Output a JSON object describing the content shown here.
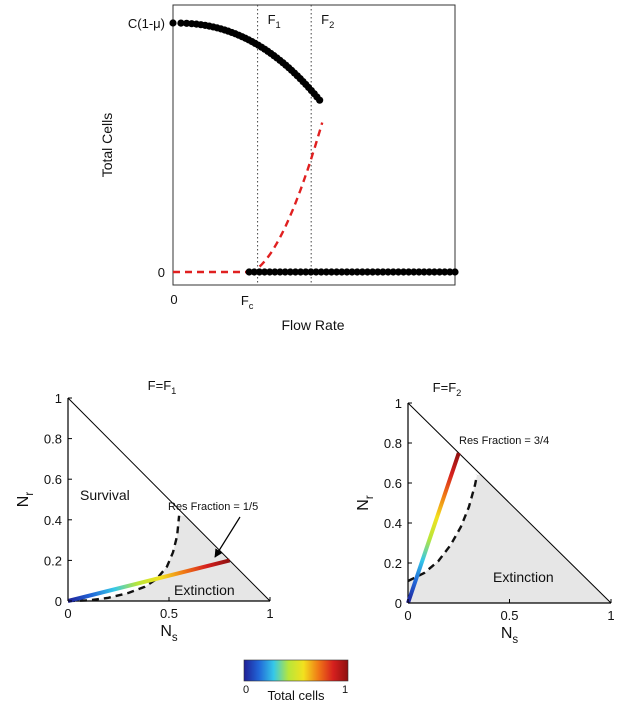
{
  "chart_data": [
    {
      "type": "scatter",
      "xlabel": "Flow Rate",
      "ylabel": "Total Cells",
      "x_tick_labels": [
        {
          "main": "0",
          "sub": ""
        },
        {
          "main": "F",
          "sub": "c"
        }
      ],
      "y_tick_labels": [
        "0",
        "C(1-μ)"
      ],
      "vlines": [
        {
          "main": "F",
          "sub": "1",
          "x": 0.3
        },
        {
          "main": "F",
          "sub": "2",
          "x": 0.49
        }
      ],
      "xlim": [
        0,
        1
      ],
      "ylim": [
        0,
        1
      ],
      "critical_flow": 0.27,
      "series": [
        {
          "kind": "stable-survival",
          "style": "black-dots",
          "x_range": [
            0,
            0.52
          ]
        },
        {
          "kind": "stable-extinction",
          "style": "black-dots",
          "x_range": [
            0.27,
            1
          ]
        },
        {
          "kind": "unstable",
          "style": "red-dashed",
          "x_range": [
            0,
            0.53
          ]
        }
      ]
    },
    {
      "type": "line",
      "title_main": "F=F",
      "title_sub": "1",
      "xlabel_main": "N",
      "xlabel_sub": "s",
      "ylabel_main": "N",
      "ylabel_sub": "r",
      "xlim": [
        0,
        1
      ],
      "ylim": [
        0,
        1
      ],
      "x_ticks": [
        "0",
        "0.5",
        "1"
      ],
      "y_ticks": [
        "0",
        "0.2",
        "0.4",
        "0.6",
        "0.8",
        "1"
      ],
      "region_labels": {
        "survival": "Survival",
        "extinction": "Extinction"
      },
      "annotation": "Res Fraction = 1/5",
      "res_fraction": 0.2,
      "resistant_line_end": [
        0.8,
        0.2
      ],
      "separatrix": [
        [
          0,
          0
        ],
        [
          0.1,
          0.003
        ],
        [
          0.2,
          0.016
        ],
        [
          0.3,
          0.04
        ],
        [
          0.38,
          0.07
        ],
        [
          0.44,
          0.11
        ],
        [
          0.49,
          0.17
        ],
        [
          0.52,
          0.24
        ],
        [
          0.54,
          0.32
        ],
        [
          0.55,
          0.42
        ]
      ]
    },
    {
      "type": "line",
      "title_main": "F=F",
      "title_sub": "2",
      "xlabel_main": "N",
      "xlabel_sub": "s",
      "ylabel_main": "N",
      "ylabel_sub": "r",
      "xlim": [
        0,
        1
      ],
      "ylim": [
        0,
        1
      ],
      "x_ticks": [
        "0",
        "0.5",
        "1"
      ],
      "y_ticks": [
        "0",
        "0.2",
        "0.4",
        "0.6",
        "0.8",
        "1"
      ],
      "region_labels": {
        "extinction": "Extinction"
      },
      "annotation": "Res Fraction = 3/4",
      "res_fraction": 0.75,
      "resistant_line_end": [
        0.25,
        0.75
      ],
      "separatrix": [
        [
          0,
          0.11
        ],
        [
          0.08,
          0.15
        ],
        [
          0.15,
          0.21
        ],
        [
          0.21,
          0.29
        ],
        [
          0.26,
          0.38
        ],
        [
          0.3,
          0.48
        ],
        [
          0.33,
          0.59
        ],
        [
          0.34,
          0.64
        ]
      ]
    }
  ],
  "colorbar": {
    "label": "Total cells",
    "min_label": "0",
    "max_label": "1",
    "stops": [
      "#1f1f96",
      "#2166d8",
      "#35c8e8",
      "#b8e63a",
      "#f2e11e",
      "#f07a16",
      "#d6201e",
      "#8e1010"
    ]
  },
  "colors": {
    "unstable": "#e02020",
    "extinction_fill": "#e6e6e6",
    "points": "#000000"
  }
}
